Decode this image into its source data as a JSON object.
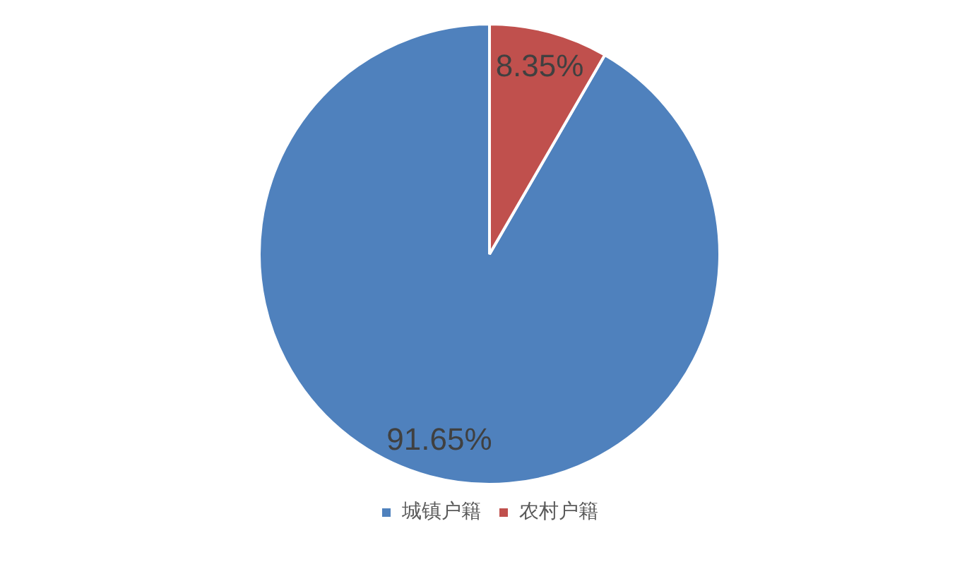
{
  "chart_data": {
    "type": "pie",
    "categories": [
      "城镇户籍",
      "农村户籍"
    ],
    "values": [
      91.65,
      8.35
    ],
    "colors": [
      "#4f81bd",
      "#c0504d"
    ],
    "value_labels": [
      "91.65%",
      "8.35%"
    ],
    "legend": "bottom"
  }
}
